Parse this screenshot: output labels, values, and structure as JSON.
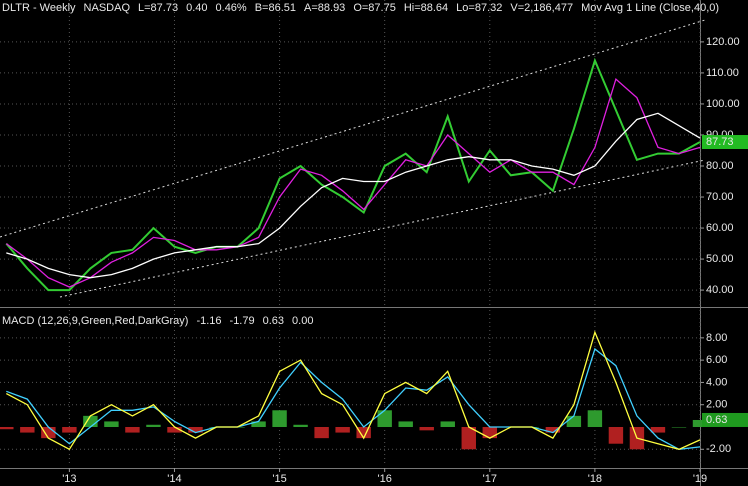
{
  "chart_data": [
    {
      "type": "line",
      "header": [
        {
          "text": "DLTR - Weekly",
          "color": "#e8e8e8"
        },
        {
          "text": "NASDAQ",
          "color": "#e8e8e8"
        },
        {
          "text": "L=87.73",
          "color": "#e8e8e8"
        },
        {
          "text": "0.40",
          "color": "#33dd33"
        },
        {
          "text": "0.46%",
          "color": "#33dd33"
        },
        {
          "text": "B=86.51",
          "color": "#e8e8e8"
        },
        {
          "text": "A=88.93",
          "color": "#e8e8e8"
        },
        {
          "text": "O=87.75",
          "color": "#e8e8e8"
        },
        {
          "text": "Hi=88.64",
          "color": "#e8e8e8"
        },
        {
          "text": "Lo=87.32",
          "color": "#e8e8e8"
        },
        {
          "text": "V=2,186,477",
          "color": "#e8e8e8"
        },
        {
          "text": "Mov Avg 1 Line (Close,40,0)",
          "color": "#e8e8e8"
        }
      ],
      "x": [
        2012.4,
        2012.6,
        2012.8,
        2013.0,
        2013.2,
        2013.4,
        2013.6,
        2013.8,
        2014.0,
        2014.2,
        2014.4,
        2014.6,
        2014.8,
        2015.0,
        2015.2,
        2015.4,
        2015.6,
        2015.8,
        2016.0,
        2016.2,
        2016.4,
        2016.6,
        2016.8,
        2017.0,
        2017.2,
        2017.4,
        2017.6,
        2017.8,
        2018.0,
        2018.2,
        2018.4,
        2018.6,
        2018.8,
        2019.0
      ],
      "series": [
        {
          "color": "#33cc33",
          "style": "line",
          "values": [
            55,
            47,
            40,
            40,
            47,
            52,
            53,
            60,
            54,
            52,
            54,
            54,
            60,
            76,
            80,
            74,
            70,
            65,
            80,
            84,
            78,
            96,
            75,
            85,
            77,
            78,
            72,
            92,
            114,
            98,
            82,
            84,
            84,
            87.73
          ]
        },
        {
          "color": "#e020e0",
          "style": "line",
          "values": [
            55,
            50,
            44,
            41,
            44,
            49,
            52,
            57,
            56,
            53,
            53,
            54,
            57,
            70,
            79,
            77,
            72,
            66,
            74,
            82,
            80,
            90,
            84,
            78,
            82,
            78,
            78,
            74,
            86,
            108,
            102,
            86,
            84,
            86
          ]
        },
        {
          "color": "#ffffff",
          "style": "line",
          "values": [
            52,
            50,
            47,
            45,
            44,
            45,
            47,
            50,
            52,
            53,
            54,
            54,
            55,
            60,
            67,
            73,
            76,
            75,
            75,
            78,
            80,
            82,
            83,
            82,
            82,
            80,
            79,
            77,
            80,
            88,
            95,
            97,
            93,
            89
          ]
        }
      ],
      "ylim": [
        35.2,
        133.5
      ],
      "yticks": [
        {
          "value": 40,
          "label": "40.00"
        },
        {
          "value": 50,
          "label": "50.00"
        },
        {
          "value": 60,
          "label": "60.00"
        },
        {
          "value": 70,
          "label": "70.00"
        },
        {
          "value": 80,
          "label": "80.00"
        },
        {
          "value": 90,
          "label": "90.00"
        },
        {
          "value": 100,
          "label": "100.00"
        },
        {
          "value": 110,
          "label": "110.00"
        },
        {
          "value": 120,
          "label": "120.00"
        }
      ],
      "grid": true
    },
    {
      "type": "line",
      "header": [
        {
          "text": "MACD (12,26,9,Green,Red,DarkGray)",
          "color": "#e8e8e8"
        },
        {
          "text": "-1.16",
          "color": "#ffff40"
        },
        {
          "text": "-1.79",
          "color": "#40d0ff"
        },
        {
          "text": "0.63",
          "color": "#33dd33"
        },
        {
          "text": "0.00",
          "color": "#339933"
        }
      ],
      "x": [
        2012.4,
        2012.6,
        2012.8,
        2013.0,
        2013.2,
        2013.4,
        2013.6,
        2013.8,
        2014.0,
        2014.2,
        2014.4,
        2014.6,
        2014.8,
        2015.0,
        2015.2,
        2015.4,
        2015.6,
        2015.8,
        2016.0,
        2016.2,
        2016.4,
        2016.6,
        2016.8,
        2017.0,
        2017.2,
        2017.4,
        2017.6,
        2017.8,
        2018.0,
        2018.2,
        2018.4,
        2018.6,
        2018.8,
        2019.0
      ],
      "series": [
        {
          "color": "#2e9a2e",
          "negative_color": "#b02020",
          "style": "bar",
          "values": [
            -0.2,
            -0.5,
            -1,
            -0.5,
            1,
            0.5,
            -0.5,
            0.2,
            -0.5,
            -0.5,
            0,
            0,
            0.5,
            1.5,
            0.2,
            -1,
            -0.5,
            -1,
            1.5,
            0.5,
            -0.3,
            0.5,
            -2,
            -1,
            0,
            0,
            -0.5,
            1,
            1.5,
            -1.5,
            -2,
            -0.5,
            0,
            0.63
          ]
        },
        {
          "color": "#40d0ff",
          "style": "line",
          "values": [
            3.2,
            2.5,
            0,
            -1.5,
            0,
            1.5,
            1.5,
            1.8,
            0.5,
            -0.5,
            0,
            0,
            0.5,
            3.5,
            5.8,
            4,
            2.5,
            0,
            1.5,
            3.5,
            3.3,
            4.5,
            2,
            0,
            0,
            0,
            -0.5,
            1,
            7,
            5.5,
            1,
            -1,
            -2,
            -1.79
          ]
        },
        {
          "color": "#ffff40",
          "style": "line",
          "values": [
            3,
            2,
            -1,
            -2,
            1,
            2,
            1,
            2,
            0,
            -1,
            0,
            0,
            1,
            5,
            6,
            3,
            2,
            -1,
            3,
            4,
            3,
            5,
            0,
            -1,
            0,
            0,
            -1,
            2,
            8.5,
            4,
            -1,
            -1.5,
            -2,
            -1.16
          ]
        }
      ],
      "ylim": [
        -3.5,
        10.5
      ],
      "yticks": [
        {
          "value": -2,
          "label": "-2.00"
        },
        {
          "value": 2,
          "label": "2.00"
        },
        {
          "value": 4,
          "label": "4.00"
        },
        {
          "value": 6,
          "label": "6.00"
        },
        {
          "value": 8,
          "label": "8.00"
        }
      ],
      "xlim": [
        2012.34,
        2019.0
      ],
      "xticks": [
        {
          "value": 2013,
          "label": "'13"
        },
        {
          "value": 2014,
          "label": "'14"
        },
        {
          "value": 2015,
          "label": "'15"
        },
        {
          "value": 2016,
          "label": "'16"
        },
        {
          "value": 2017,
          "label": "'17"
        },
        {
          "value": 2018,
          "label": "'18"
        },
        {
          "value": 2019,
          "label": "'19"
        }
      ],
      "grid": true
    }
  ]
}
